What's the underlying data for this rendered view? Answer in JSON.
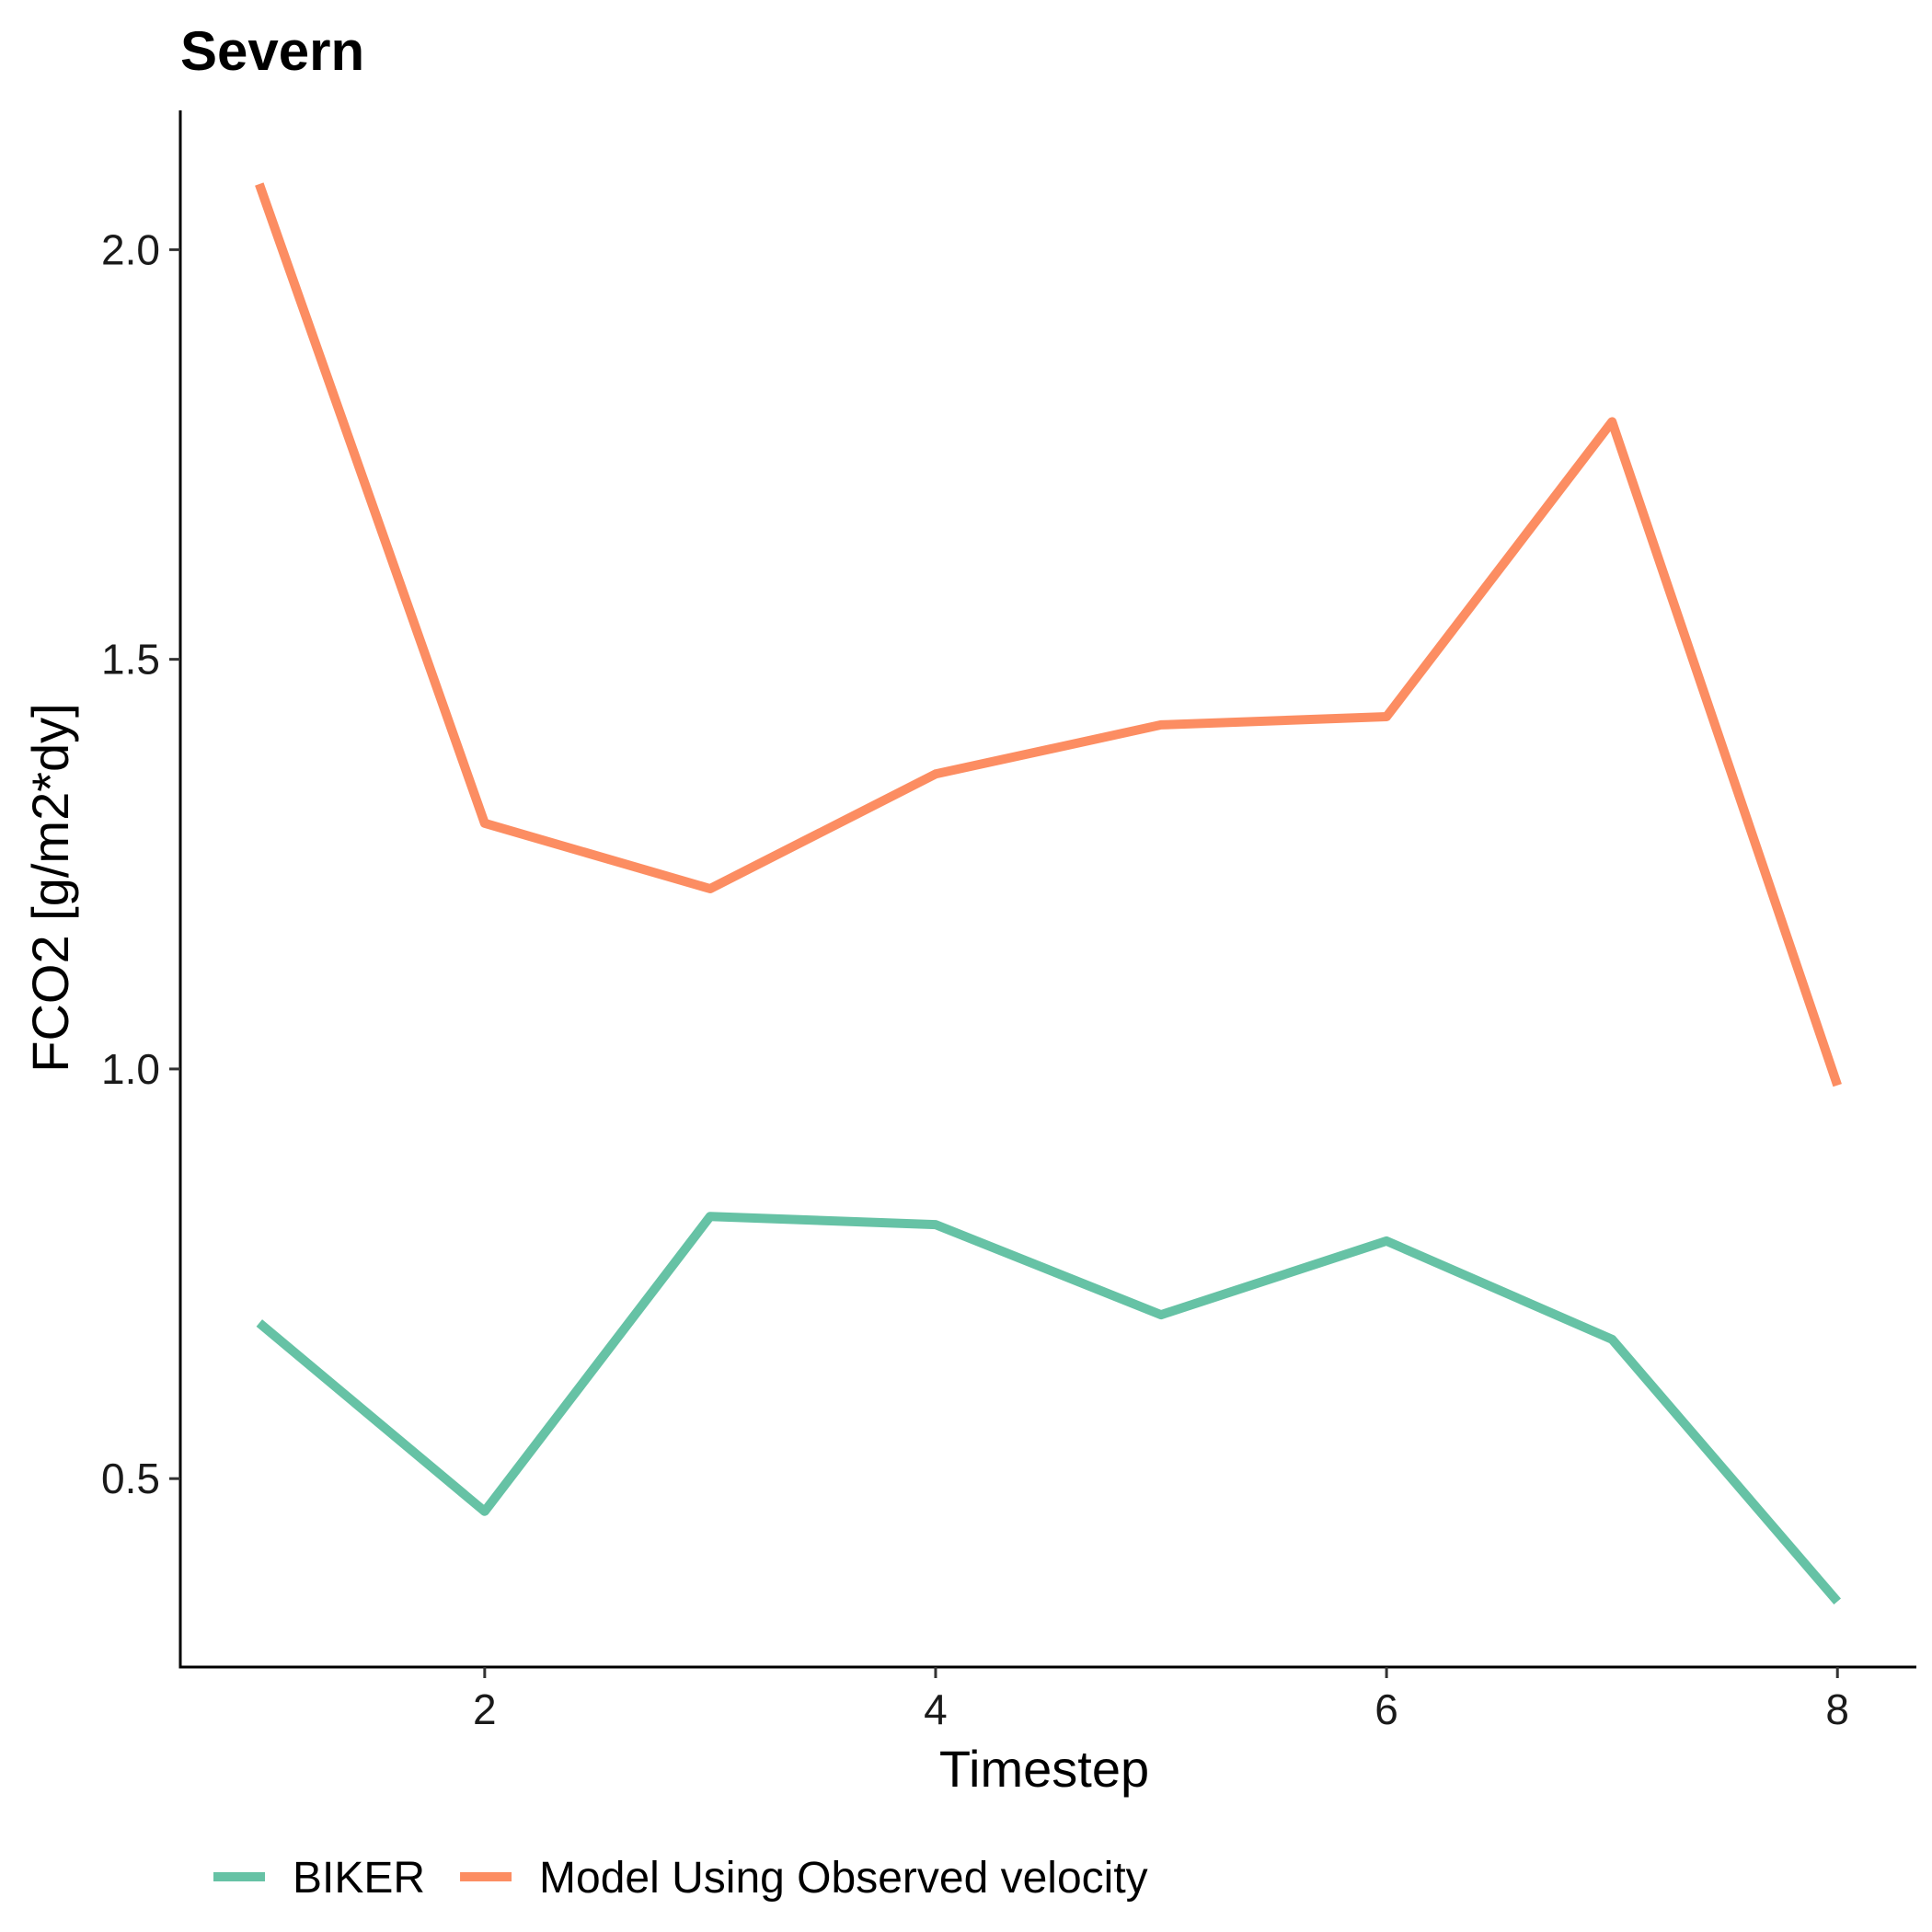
{
  "chart_data": {
    "type": "line",
    "title": "Severn",
    "xlabel": "Timestep",
    "ylabel": "FCO2 [g/m2*dy]",
    "x": [
      1,
      2,
      3,
      4,
      5,
      6,
      7,
      8
    ],
    "xlim": [
      0.65,
      8.35
    ],
    "ylim": [
      0.27,
      2.17
    ],
    "xticks": [
      2,
      4,
      6,
      8
    ],
    "xtick_labels": [
      "2",
      "4",
      "6",
      "8"
    ],
    "yticks": [
      0.5,
      1.0,
      1.5,
      2.0
    ],
    "ytick_labels": [
      "0.5",
      "1.0",
      "1.5",
      "2.0"
    ],
    "grid": false,
    "legend_position": "bottom-left",
    "series": [
      {
        "name": "BIKER",
        "color": "#66C2A5",
        "values": [
          0.69,
          0.46,
          0.82,
          0.81,
          0.7,
          0.79,
          0.67,
          0.35
        ]
      },
      {
        "name": "Model Using Observed velocity",
        "color": "#FC8D62",
        "values": [
          2.08,
          1.3,
          1.22,
          1.36,
          1.42,
          1.43,
          1.79,
          0.98
        ]
      }
    ]
  }
}
